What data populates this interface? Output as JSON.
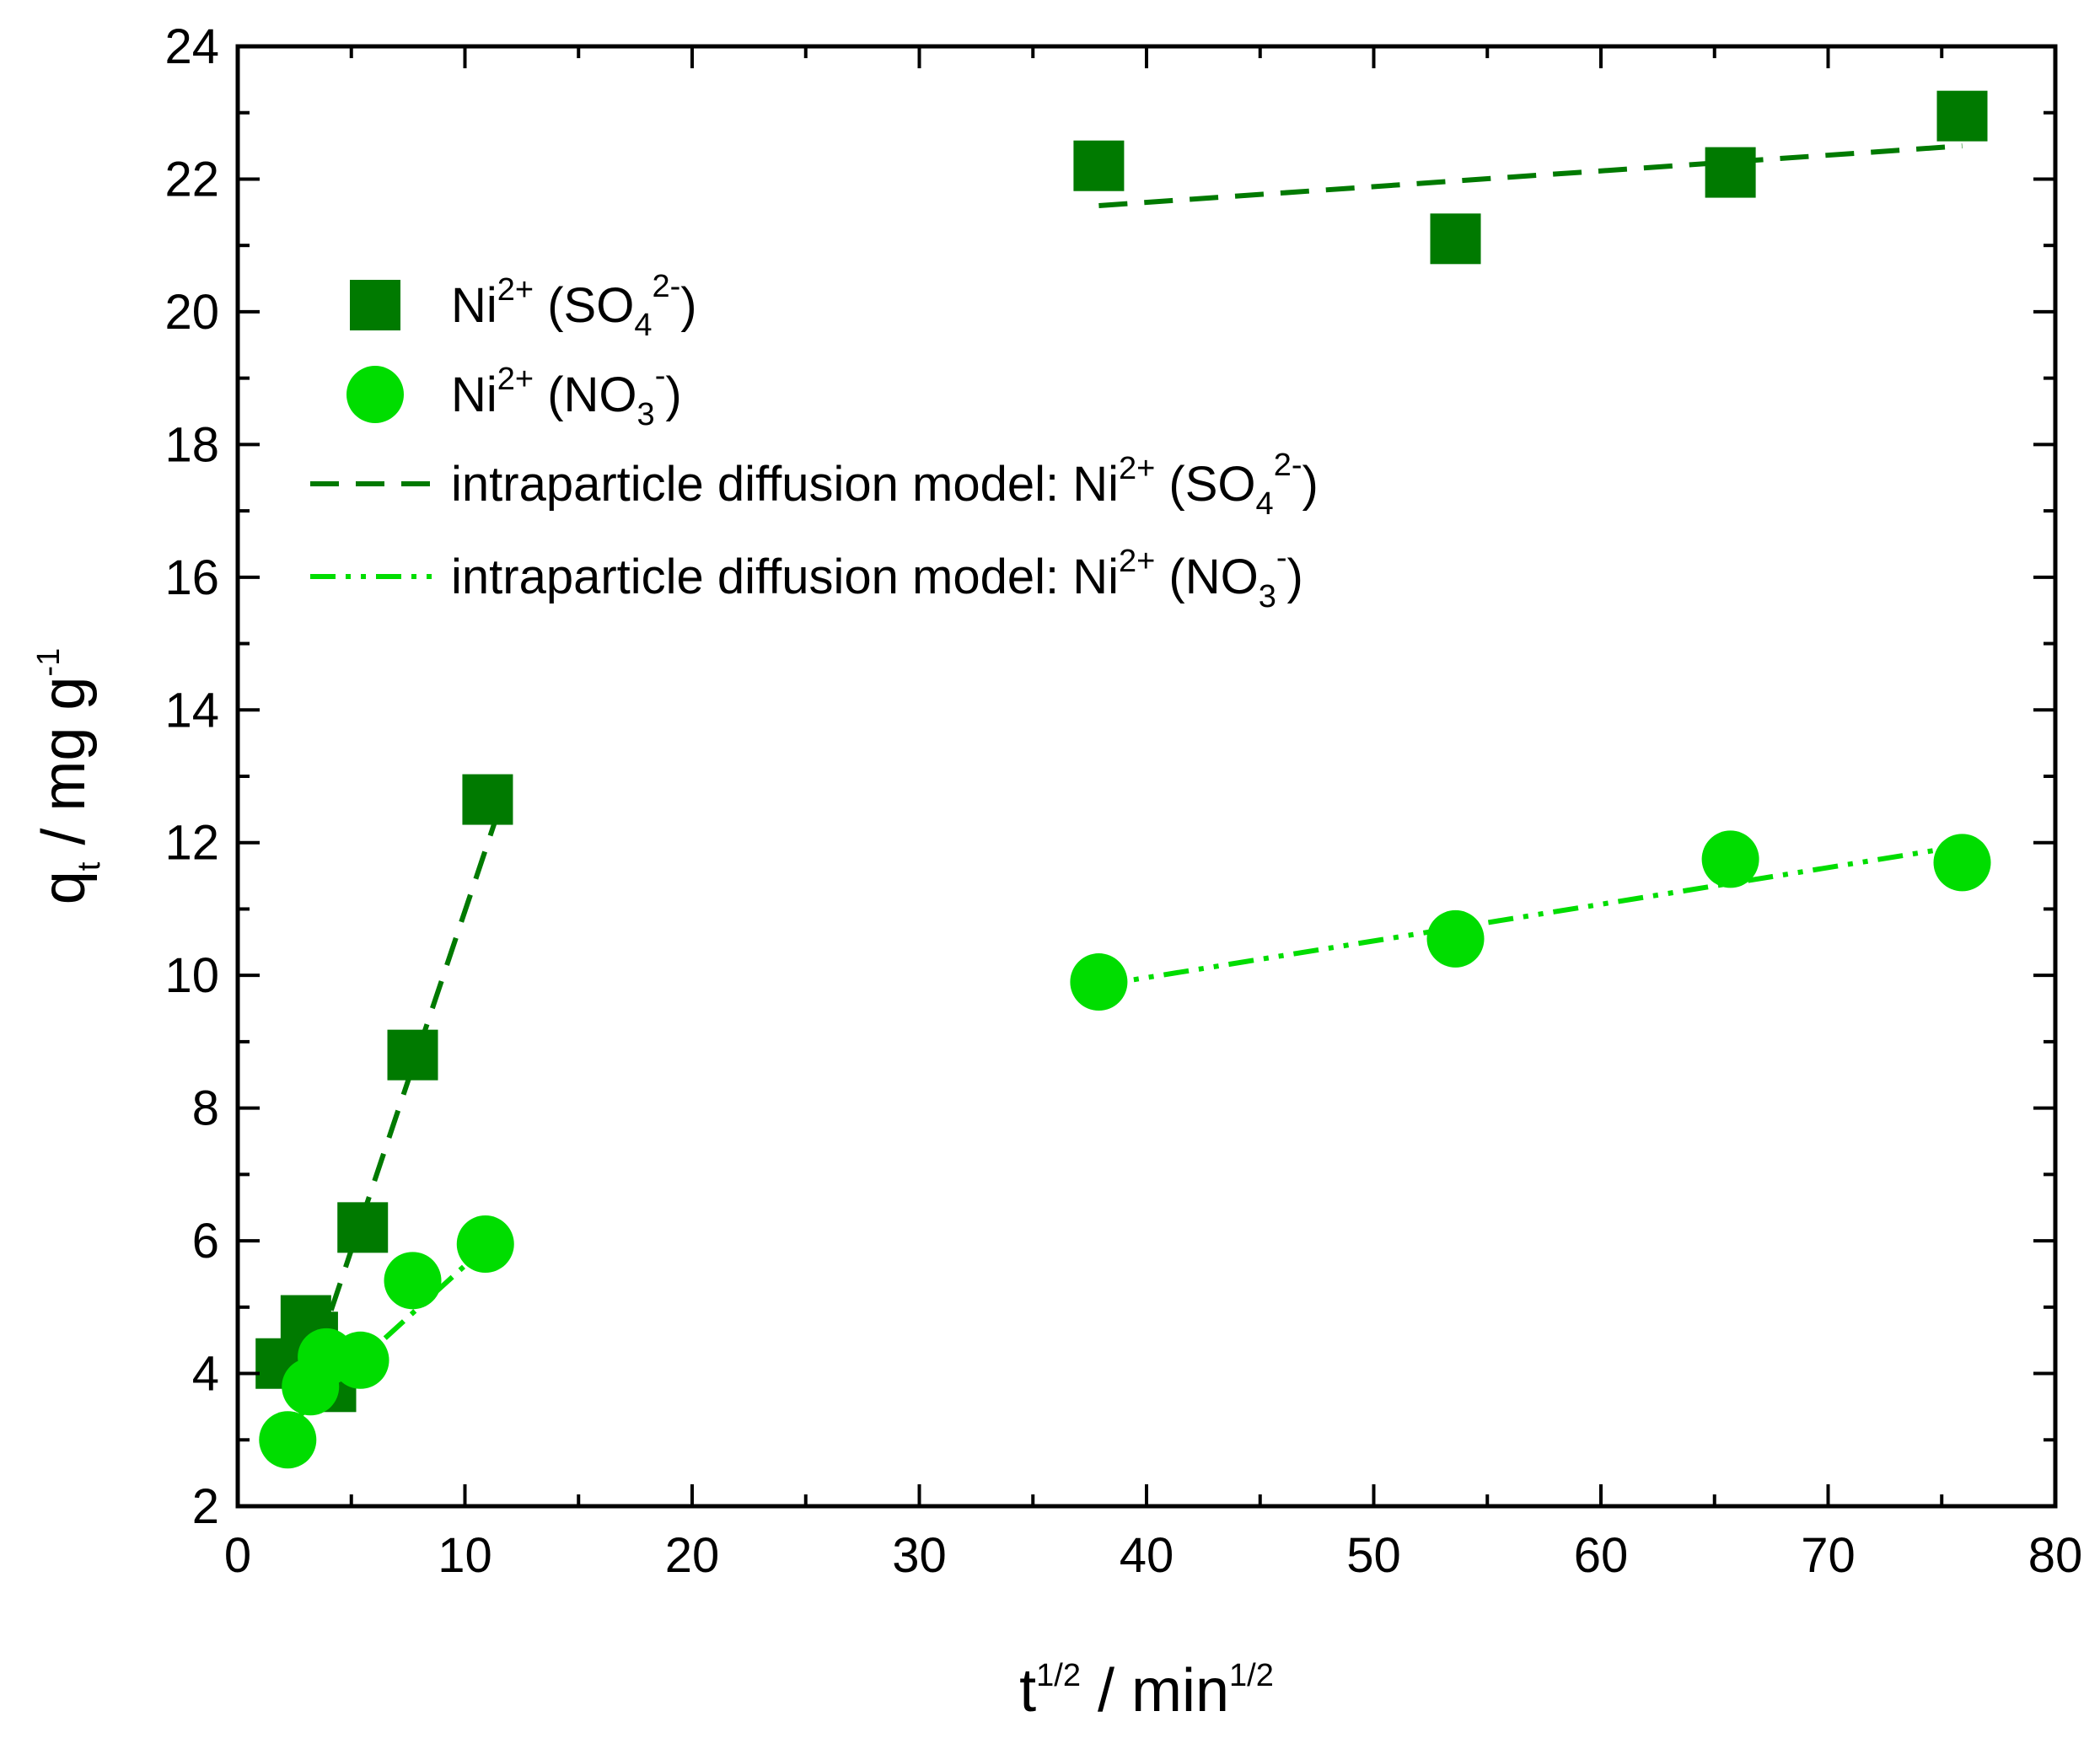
{
  "colors": {
    "so4": "#007a00",
    "no3": "#00dd00",
    "axis": "#000000"
  },
  "chart_data": {
    "type": "scatter",
    "xlim": [
      0,
      80
    ],
    "ylim": [
      2,
      24
    ],
    "x_ticks": [
      "0",
      "10",
      "20",
      "30",
      "40",
      "50",
      "60",
      "70",
      "80"
    ],
    "y_ticks": [
      "2",
      "4",
      "6",
      "8",
      "10",
      "12",
      "14",
      "16",
      "18",
      "20",
      "22",
      "24"
    ],
    "xlabel": {
      "base": "t",
      "sup": "1/2",
      "middle": " / min",
      "sup2": "1/2"
    },
    "ylabel": {
      "base": "q",
      "sub": "t",
      "middle": " / mg g",
      "sup": "-1"
    },
    "series": [
      {
        "name": "Ni2+ (SO4 2-)",
        "marker": "square",
        "color_key": "so4",
        "points": [
          [
            1.9,
            4.15
          ],
          [
            3.0,
            4.8
          ],
          [
            3.3,
            4.55
          ],
          [
            4.1,
            3.8
          ],
          [
            5.5,
            6.2
          ],
          [
            7.7,
            8.8
          ],
          [
            11.0,
            12.65
          ],
          [
            37.9,
            22.2
          ],
          [
            53.6,
            21.1
          ],
          [
            65.7,
            22.1
          ],
          [
            75.9,
            22.95
          ]
        ]
      },
      {
        "name": "Ni2+ (NO3 -)",
        "marker": "circle",
        "color_key": "no3",
        "points": [
          [
            2.2,
            3.0
          ],
          [
            3.2,
            3.8
          ],
          [
            3.9,
            4.25
          ],
          [
            5.4,
            4.2
          ],
          [
            7.7,
            5.4
          ],
          [
            10.9,
            5.95
          ],
          [
            37.9,
            9.9
          ],
          [
            53.6,
            10.55
          ],
          [
            65.7,
            11.75
          ],
          [
            75.9,
            11.7
          ]
        ]
      }
    ],
    "fit_lines": [
      {
        "name": "intraparticle diffusion model: Ni2+ (SO4 2-)",
        "style": "dash",
        "color_key": "so4",
        "from": [
          2.2,
          3.0
        ],
        "to": [
          11.5,
          12.5
        ]
      },
      {
        "name": "intraparticle diffusion model: Ni2+ (SO4 2-)",
        "style": "dash",
        "color_key": "so4",
        "from": [
          37.9,
          21.6
        ],
        "to": [
          75.9,
          22.5
        ]
      },
      {
        "name": "intraparticle diffusion model: Ni2+ (NO3 -)",
        "style": "dashdotdot",
        "color_key": "no3",
        "from": [
          2.2,
          3.2
        ],
        "to": [
          11.2,
          6.0
        ]
      },
      {
        "name": "intraparticle diffusion model: Ni2+ (NO3 -)",
        "style": "dashdotdot",
        "color_key": "no3",
        "from": [
          37.9,
          9.85
        ],
        "to": [
          75.9,
          11.95
        ]
      }
    ],
    "legend": {
      "placement": "top-left",
      "entries": [
        {
          "kind": "square",
          "color_key": "so4",
          "text": "Ni",
          "sup": "2+",
          "open": " (SO",
          "sub": "4",
          "sup2": "2-",
          "close": ")"
        },
        {
          "kind": "circle",
          "color_key": "no3",
          "text": "Ni",
          "sup": "2+",
          "open": " (NO",
          "sub": "3",
          "sup2": "-",
          "close": ")"
        },
        {
          "kind": "dash",
          "color_key": "so4",
          "text": "intraparticle diffusion model: Ni",
          "sup": "2+",
          "open": " (SO",
          "sub": "4",
          "sup2": "2-",
          "close": ")"
        },
        {
          "kind": "dashdotdot",
          "color_key": "no3",
          "text": "intraparticle diffusion model: Ni",
          "sup": "2+",
          "open": " (NO",
          "sub": "3",
          "sup2": "-",
          "close": ")"
        }
      ]
    }
  }
}
